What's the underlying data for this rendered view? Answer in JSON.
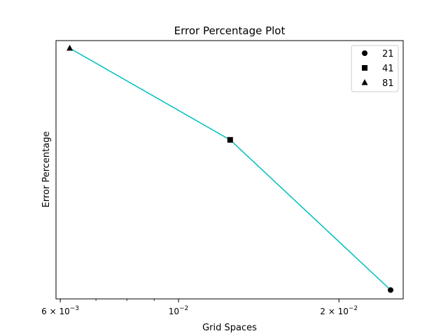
{
  "chart_data": {
    "type": "line",
    "title": "Error Percentage Plot",
    "xlabel": "Grid Spaces",
    "ylabel": "Error Percentage",
    "xscale": "log",
    "yscale": "log",
    "xlim": [
      0.00589,
      0.0264
    ],
    "ylim": [
      0.0147,
      1.02
    ],
    "x_ticks": [
      {
        "value": 0.006,
        "base": "6 × 10",
        "exp": "−3"
      },
      {
        "value": 0.01,
        "base": "10",
        "exp": "−2"
      },
      {
        "value": 0.02,
        "base": "2 × 10",
        "exp": "−2"
      }
    ],
    "x_minor_ticks": [
      0.007,
      0.008,
      0.009
    ],
    "line_color": "#00bfbf",
    "points": [
      {
        "x": 0.025,
        "y": 0.017,
        "marker": "circle",
        "label": "21"
      },
      {
        "x": 0.0125,
        "y": 0.2,
        "marker": "square",
        "label": "41"
      },
      {
        "x": 0.00625,
        "y": 0.9,
        "marker": "triangle",
        "label": "81"
      }
    ],
    "legend": {
      "placement": "top-right",
      "entries": [
        {
          "marker": "circle",
          "label": "21"
        },
        {
          "marker": "square",
          "label": "41"
        },
        {
          "marker": "triangle",
          "label": "81"
        }
      ]
    },
    "grid": false
  }
}
